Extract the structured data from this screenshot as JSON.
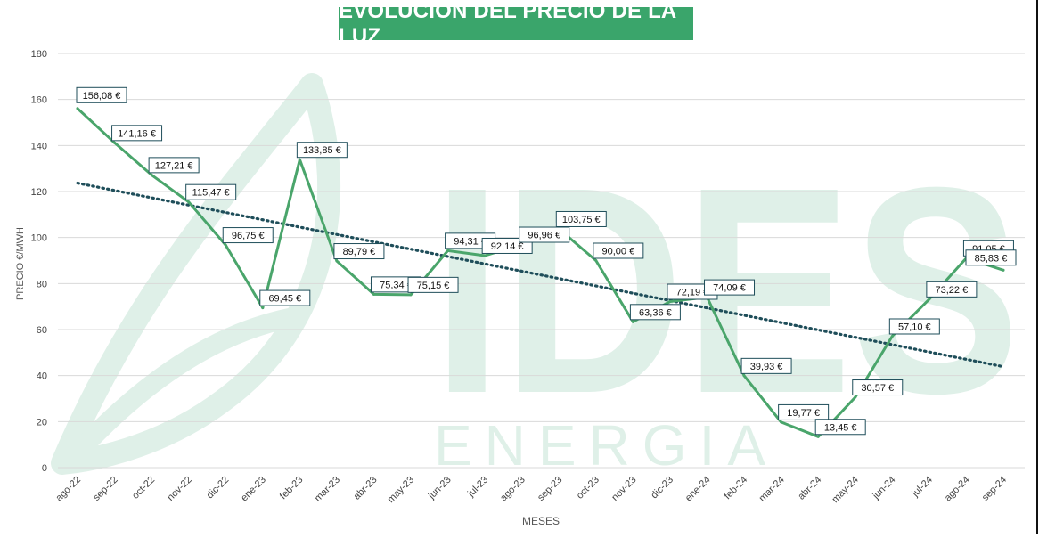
{
  "chart_data": {
    "type": "line",
    "title": "EVOLUCION DEL PRECIO DE LA LUZ",
    "xlabel": "MESES",
    "ylabel": "PRECIO €/MWH",
    "ylim": [
      0,
      180
    ],
    "yticks": [
      0,
      20,
      40,
      60,
      80,
      100,
      120,
      140,
      160,
      180
    ],
    "grid": true,
    "categories": [
      "ago-22",
      "sep-22",
      "oct-22",
      "nov-22",
      "dic-22",
      "ene-23",
      "feb-23",
      "mar-23",
      "abr-23",
      "may-23",
      "jun-23",
      "jul-23",
      "ago-23",
      "sep-23",
      "oct-23",
      "nov-23",
      "dic-23",
      "ene-24",
      "feb-24",
      "mar-24",
      "abr-24",
      "may-24",
      "jun-24",
      "jul-24",
      "ago-24",
      "sep-24"
    ],
    "series": [
      {
        "values": [
          156.08,
          141.16,
          127.21,
          115.47,
          96.75,
          69.45,
          133.85,
          89.79,
          75.34,
          75.15,
          94.31,
          92.14,
          96.96,
          103.75,
          90.0,
          63.36,
          72.19,
          74.09,
          39.93,
          19.77,
          13.45,
          30.57,
          57.1,
          73.22,
          91.05,
          85.83
        ],
        "labels": [
          "156,08 €",
          "141,16 €",
          "127,21 €",
          "115,47 €",
          "96,75 €",
          "69,45 €",
          "133,85 €",
          "89,79 €",
          "75,34 €",
          "75,15 €",
          "94,31 €",
          "92,14 €",
          "96,96 €",
          "103,75 €",
          "90,00 €",
          "63,36 €",
          "72,19 €",
          "74,09 €",
          "39,93 €",
          "19,77 €",
          "13,45 €",
          "30,57 €",
          "57,10 €",
          "73,22 €",
          "91,05 €",
          "85,83 €"
        ],
        "color": "#4aa56b"
      }
    ],
    "trendline": {
      "type": "linear",
      "color": "#1f4e5a",
      "style": "dotted"
    },
    "watermark": {
      "text_top": "IDES",
      "text_bottom": "ENERGIA",
      "color": "#dff0e8"
    }
  }
}
